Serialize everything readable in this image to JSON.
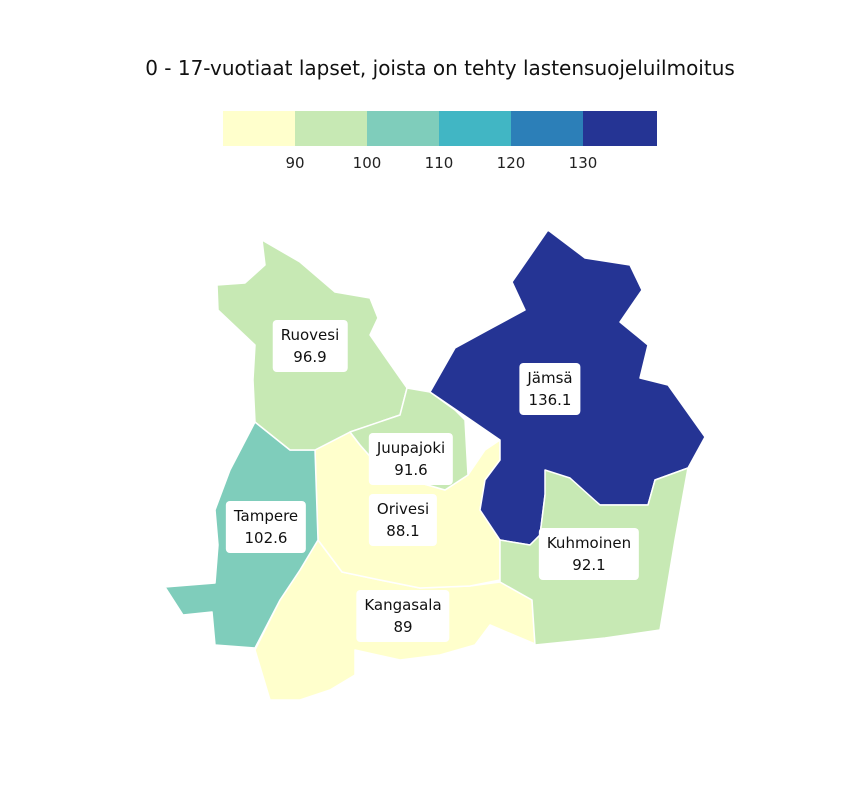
{
  "title": "0 - 17-vuotiaat lapset, joista on tehty lastensuojeluilmoitus",
  "legend": {
    "colors": [
      "#ffffcc",
      "#c7e9b4",
      "#7fcdbb",
      "#41b6c4",
      "#2c7fb8",
      "#253494"
    ],
    "ticks": [
      "90",
      "100",
      "110",
      "120",
      "130"
    ]
  },
  "regions": [
    {
      "id": "ruovesi",
      "name": "Ruovesi",
      "value": "96.9",
      "color": "#c7e9b4"
    },
    {
      "id": "jamsa",
      "name": "Jämsä",
      "value": "136.1",
      "color": "#253494"
    },
    {
      "id": "juupajoki",
      "name": "Juupajoki",
      "value": "91.6",
      "color": "#c7e9b4"
    },
    {
      "id": "tampere",
      "name": "Tampere",
      "value": "102.6",
      "color": "#7fcdbb"
    },
    {
      "id": "orivesi",
      "name": "Orivesi",
      "value": "88.1",
      "color": "#ffffcc"
    },
    {
      "id": "kuhmoinen",
      "name": "Kuhmoinen",
      "value": "92.1",
      "color": "#c7e9b4"
    },
    {
      "id": "kangasala",
      "name": "Kangasala",
      "value": "89",
      "color": "#ffffcc"
    }
  ]
}
